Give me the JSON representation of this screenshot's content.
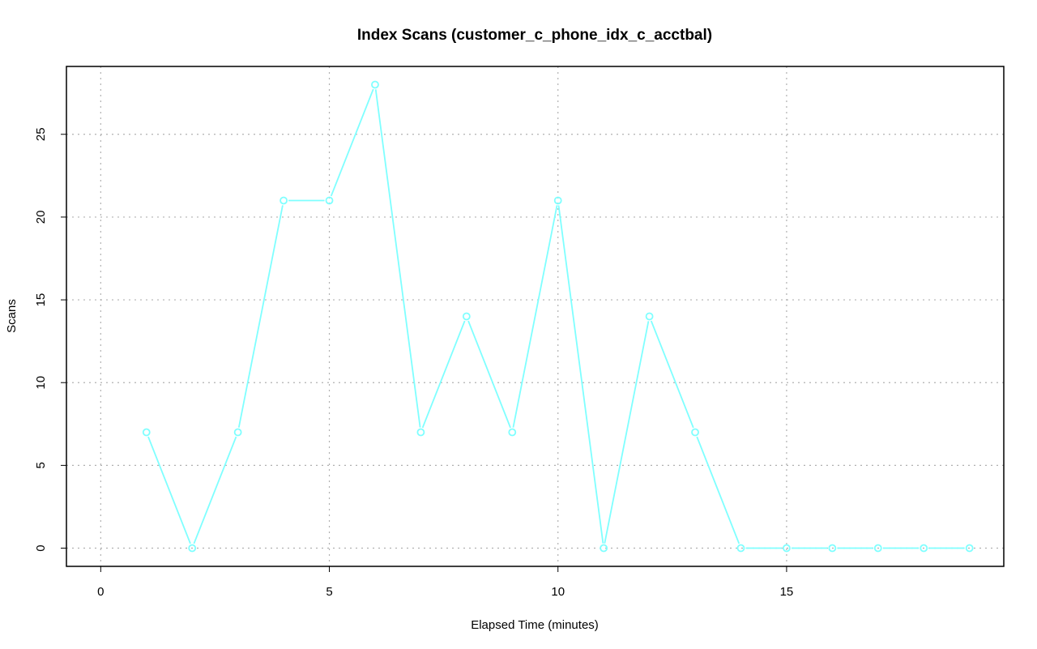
{
  "chart_data": {
    "type": "line",
    "title": "Index Scans (customer_c_phone_idx_c_acctbal)",
    "xlabel": "Elapsed Time (minutes)",
    "ylabel": "Scans",
    "xlim": [
      -0.75,
      19.75
    ],
    "ylim": [
      -1.1,
      29.1
    ],
    "x_ticks": [
      0,
      5,
      10,
      15
    ],
    "y_ticks": [
      0,
      5,
      10,
      15,
      20,
      25
    ],
    "grid": true,
    "line_color": "#7fffff",
    "series": [
      {
        "x": [
          1,
          2,
          3,
          4,
          5,
          6,
          7,
          8,
          9,
          10,
          11,
          12,
          13,
          14,
          15,
          16,
          17,
          18,
          19
        ],
        "values": [
          7,
          0,
          7,
          21,
          21,
          28,
          7,
          14,
          7,
          21,
          0,
          14,
          7,
          0,
          0,
          0,
          0,
          0,
          0
        ]
      }
    ]
  }
}
